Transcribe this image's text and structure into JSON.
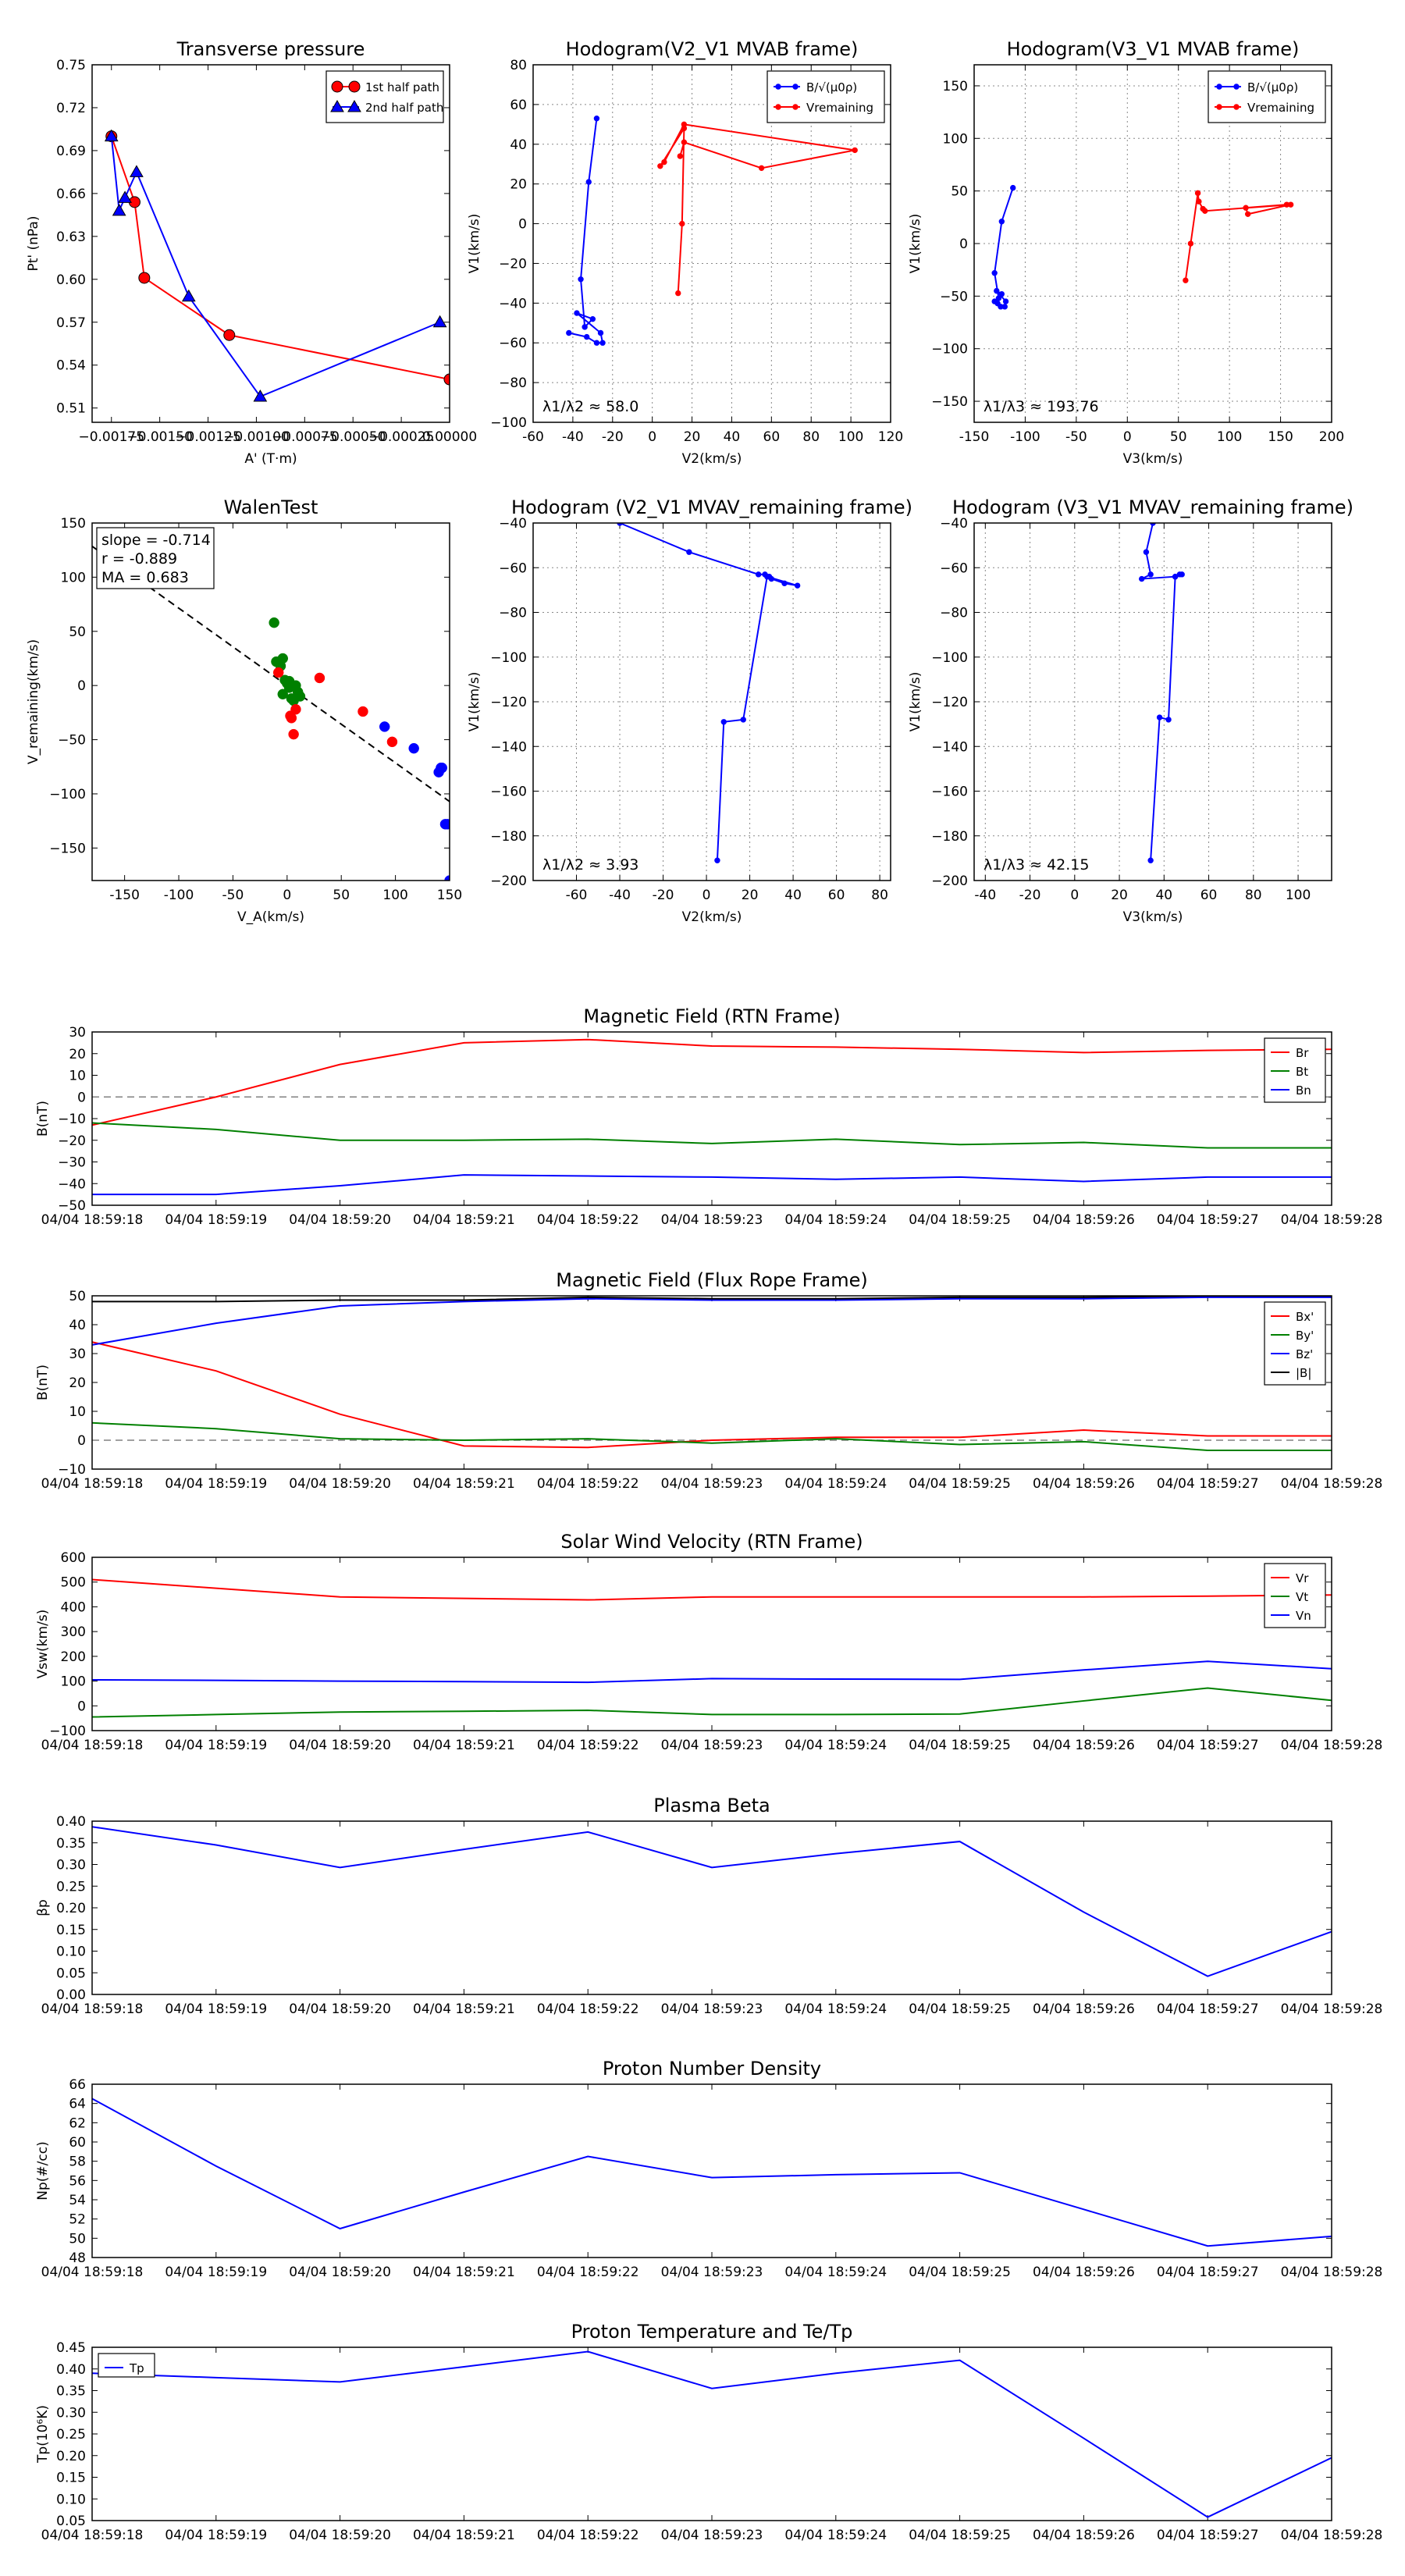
{
  "colors": {
    "red": "#ff0000",
    "green": "#008000",
    "blue": "#0000ff",
    "black": "#000000",
    "gray": "#808080"
  },
  "chart_data": [
    {
      "id": "transverse-pressure",
      "type": "line",
      "title": "Transverse pressure",
      "xlabel": "A' (T·m)",
      "ylabel": "Pt' (nPa)",
      "xlim": [
        -0.00185,
        0.0
      ],
      "ylim": [
        0.5,
        0.75
      ],
      "xticks": [
        -0.00175,
        -0.0015,
        -0.00125,
        -0.001,
        -0.00075,
        -0.0005,
        -0.00025,
        0.0
      ],
      "xtick_labels": [
        "−0.00175",
        "−0.00150",
        "−0.00125",
        "−0.00100",
        "−0.00075",
        "−0.00050",
        "−0.00025",
        "0.00000"
      ],
      "yticks": [
        0.51,
        0.54,
        0.57,
        0.6,
        0.63,
        0.66,
        0.69,
        0.72,
        0.75
      ],
      "ytick_labels": [
        "0.51",
        "0.54",
        "0.57",
        "0.60",
        "0.63",
        "0.66",
        "0.69",
        "0.72",
        "0.75"
      ],
      "legend": [
        "1st half path",
        "2nd half path"
      ],
      "series": [
        {
          "name": "1st half path",
          "color": "red",
          "marker": "circle",
          "x": [
            -0.00175,
            -0.00163,
            -0.00158,
            -0.00114,
            0.0
          ],
          "y": [
            0.7,
            0.654,
            0.601,
            0.561,
            0.53
          ]
        },
        {
          "name": "2nd half path",
          "color": "blue",
          "marker": "triangle",
          "x": [
            -0.00175,
            -0.00171,
            -0.00168,
            -0.00162,
            -0.00135,
            -0.00098,
            -5e-05
          ],
          "y": [
            0.7,
            0.648,
            0.657,
            0.675,
            0.588,
            0.518,
            0.57
          ]
        }
      ]
    },
    {
      "id": "hodogram-v2-v1-mvab",
      "type": "line",
      "title": "Hodogram(V2_V1 MVAB frame)",
      "xlabel": "V2(km/s)",
      "ylabel": "V1(km/s)",
      "xlim": [
        -60,
        120
      ],
      "ylim": [
        -100,
        80
      ],
      "xticks": [
        -60,
        -40,
        -20,
        0,
        20,
        40,
        60,
        80,
        100,
        120
      ],
      "yticks": [
        -100,
        -80,
        -60,
        -40,
        -20,
        0,
        20,
        40,
        60,
        80
      ],
      "grid": true,
      "annotation": "λ1/λ2 ≈ 58.0",
      "legend": [
        "B/√(μ0ρ)",
        "Vremaining"
      ],
      "series": [
        {
          "name": "B/√(μ0ρ)",
          "color": "blue",
          "x": [
            -28,
            -32,
            -36,
            -34,
            -30,
            -38,
            -26,
            -25,
            -28,
            -33,
            -42
          ],
          "y": [
            53,
            21,
            -28,
            -52,
            -48,
            -45,
            -55,
            -60,
            -60,
            -57,
            -55
          ]
        },
        {
          "name": "Vremaining",
          "color": "red",
          "x": [
            13,
            15,
            16,
            4,
            6,
            16,
            102,
            55,
            16,
            14
          ],
          "y": [
            -35,
            0,
            48,
            29,
            31,
            50,
            37,
            28,
            41,
            34
          ]
        }
      ]
    },
    {
      "id": "hodogram-v3-v1-mvab",
      "type": "line",
      "title": "Hodogram(V3_V1 MVAB frame)",
      "xlabel": "V3(km/s)",
      "ylabel": "V1(km/s)",
      "xlim": [
        -150,
        200
      ],
      "ylim": [
        -170,
        170
      ],
      "xticks": [
        -150,
        -100,
        -50,
        0,
        50,
        100,
        150,
        200
      ],
      "yticks": [
        -150,
        -100,
        -50,
        0,
        50,
        100,
        150
      ],
      "grid": true,
      "annotation": "λ1/λ3 ≈ 193.76",
      "legend": [
        "B/√(μ0ρ)",
        "Vremaining"
      ],
      "series": [
        {
          "name": "B/√(μ0ρ)",
          "color": "blue",
          "x": [
            -112,
            -123,
            -130,
            -126,
            -123,
            -128,
            -119,
            -120,
            -124,
            -127,
            -130
          ],
          "y": [
            53,
            21,
            -28,
            -52,
            -48,
            -45,
            -55,
            -60,
            -60,
            -57,
            -55
          ]
        },
        {
          "name": "Vremaining",
          "color": "red",
          "x": [
            57,
            62,
            69,
            70,
            74,
            76,
            160,
            118,
            116,
            156
          ],
          "y": [
            -35,
            0,
            48,
            40,
            33,
            31,
            37,
            28,
            34,
            37
          ]
        }
      ]
    },
    {
      "id": "walen-test",
      "type": "scatter",
      "title": "WalenTest",
      "xlabel": "V_A(km/s)",
      "ylabel": "V_remaining(km/s)",
      "xlim": [
        -180,
        150
      ],
      "ylim": [
        -180,
        150
      ],
      "xticks": [
        -150,
        -100,
        -50,
        0,
        50,
        100,
        150
      ],
      "yticks": [
        -150,
        -100,
        -50,
        0,
        50,
        100,
        150
      ],
      "annotation": [
        "slope = -0.714",
        "r = -0.889",
        "MA = 0.683"
      ],
      "fit_line": {
        "slope": -0.714,
        "intercept": 0
      },
      "series": [
        {
          "name": "green",
          "color": "green",
          "x": [
            -12,
            -10,
            -6,
            -4,
            0,
            -2,
            2,
            4,
            6,
            8,
            10,
            12,
            -4,
            2
          ],
          "y": [
            58,
            22,
            18,
            -8,
            2,
            5,
            4,
            -12,
            -14,
            0,
            -6,
            -10,
            25,
            -2
          ]
        },
        {
          "name": "red",
          "color": "red",
          "x": [
            -8,
            30,
            4,
            70,
            6,
            97,
            8,
            3
          ],
          "y": [
            12,
            7,
            -30,
            -24,
            -45,
            -52,
            -22,
            -28
          ]
        },
        {
          "name": "blue",
          "color": "blue",
          "x": [
            90,
            117,
            140,
            142,
            143,
            146,
            148,
            150
          ],
          "y": [
            -38,
            -58,
            -80,
            -76,
            -76,
            -128,
            -128,
            -180
          ]
        }
      ]
    },
    {
      "id": "hodogram-v2-v1-mvav",
      "type": "line",
      "title": "Hodogram (V2_V1 MVAV_remaining frame)",
      "xlabel": "V2(km/s)",
      "ylabel": "V1(km/s)",
      "xlim": [
        -80,
        85
      ],
      "ylim": [
        -200,
        -40
      ],
      "xticks": [
        -60,
        -40,
        -20,
        0,
        20,
        40,
        60,
        80
      ],
      "yticks": [
        -200,
        -180,
        -160,
        -140,
        -120,
        -100,
        -80,
        -60,
        -40
      ],
      "grid": true,
      "annotation": "λ1/λ2 ≈ 3.93",
      "series": [
        {
          "name": "B",
          "color": "blue",
          "x": [
            -40,
            -8,
            24,
            27,
            29,
            30,
            36,
            42,
            28,
            17,
            8,
            5
          ],
          "y": [
            -40,
            -53,
            -63,
            -63,
            -64,
            -65,
            -67,
            -68,
            -64,
            -128,
            -129,
            -191
          ]
        }
      ]
    },
    {
      "id": "hodogram-v3-v1-mvav",
      "type": "line",
      "title": "Hodogram (V3_V1 MVAV_remaining frame)",
      "xlabel": "V3(km/s)",
      "ylabel": "V1(km/s)",
      "xlim": [
        -45,
        115
      ],
      "ylim": [
        -200,
        -40
      ],
      "xticks": [
        -40,
        -20,
        0,
        20,
        40,
        60,
        80,
        100
      ],
      "yticks": [
        -200,
        -180,
        -160,
        -140,
        -120,
        -100,
        -80,
        -60,
        -40
      ],
      "grid": true,
      "annotation": "λ1/λ3 ≈ 42.15",
      "series": [
        {
          "name": "B",
          "color": "blue",
          "x": [
            35,
            32,
            34,
            30,
            45,
            47,
            48,
            45,
            42,
            38,
            34
          ],
          "y": [
            -40,
            -53,
            -63,
            -65,
            -64,
            -63,
            -63,
            -64,
            -128,
            -127,
            -191
          ]
        }
      ]
    },
    {
      "id": "magnetic-field-rtn",
      "type": "line",
      "title": "Magnetic Field (RTN Frame)",
      "ylabel": "B(nT)",
      "x": [
        0,
        1,
        2,
        3,
        4,
        5,
        6,
        7,
        8,
        9,
        10
      ],
      "xtick_labels": [
        "04/04 18:59:18",
        "04/04 18:59:19",
        "04/04 18:59:20",
        "04/04 18:59:21",
        "04/04 18:59:22",
        "04/04 18:59:23",
        "04/04 18:59:24",
        "04/04 18:59:25",
        "04/04 18:59:26",
        "04/04 18:59:27",
        "04/04 18:59:28"
      ],
      "ylim": [
        -50,
        30
      ],
      "yticks": [
        -50,
        -40,
        -30,
        -20,
        -10,
        0,
        10,
        20,
        30
      ],
      "zero_line": true,
      "legend": [
        "Br",
        "Bt",
        "Bn"
      ],
      "series": [
        {
          "name": "Br",
          "color": "red",
          "values": [
            -13,
            0,
            15,
            25,
            26.5,
            23.5,
            23,
            22,
            20.5,
            21.5,
            22
          ]
        },
        {
          "name": "Bt",
          "color": "green",
          "values": [
            -12,
            -15,
            -20,
            -20,
            -19.5,
            -21.5,
            -19.5,
            -22,
            -21,
            -23.5,
            -23.5
          ]
        },
        {
          "name": "Bn",
          "color": "blue",
          "values": [
            -45,
            -45,
            -41,
            -36,
            -36.5,
            -37,
            -38,
            -37,
            -39,
            -37,
            -37
          ]
        }
      ]
    },
    {
      "id": "magnetic-field-flux-rope",
      "type": "line",
      "title": "Magnetic Field (Flux Rope Frame)",
      "ylabel": "B(nT)",
      "x": [
        0,
        1,
        2,
        3,
        4,
        5,
        6,
        7,
        8,
        9,
        10
      ],
      "xtick_labels": [
        "04/04 18:59:18",
        "04/04 18:59:19",
        "04/04 18:59:20",
        "04/04 18:59:21",
        "04/04 18:59:22",
        "04/04 18:59:23",
        "04/04 18:59:24",
        "04/04 18:59:25",
        "04/04 18:59:26",
        "04/04 18:59:27",
        "04/04 18:59:28"
      ],
      "ylim": [
        -10,
        50
      ],
      "yticks": [
        -10,
        0,
        10,
        20,
        30,
        40,
        50
      ],
      "zero_line": true,
      "legend": [
        "Bx'",
        "By'",
        "Bz'",
        "|B|"
      ],
      "series": [
        {
          "name": "Bx'",
          "color": "red",
          "values": [
            34,
            24,
            9,
            -2,
            -2.5,
            0,
            1,
            1,
            3.5,
            1.5,
            1.5
          ]
        },
        {
          "name": "By'",
          "color": "green",
          "values": [
            6,
            4,
            0.5,
            0,
            0.5,
            -1,
            0.5,
            -1.5,
            -0.5,
            -3.5,
            -3.5
          ]
        },
        {
          "name": "Bz'",
          "color": "blue",
          "values": [
            33,
            40.5,
            46.5,
            48,
            49,
            48.5,
            48.5,
            49,
            49,
            49.5,
            49.5
          ]
        },
        {
          "name": "|B|",
          "color": "black",
          "values": [
            48,
            48,
            48.5,
            48.5,
            49.5,
            49,
            49,
            49.5,
            49.5,
            50,
            50
          ]
        }
      ]
    },
    {
      "id": "solar-wind-velocity",
      "type": "line",
      "title": "Solar Wind Velocity (RTN Frame)",
      "ylabel": "Vsw(km/s)",
      "x": [
        0,
        1,
        2,
        3,
        4,
        5,
        6,
        7,
        8,
        9,
        10
      ],
      "xtick_labels": [
        "04/04 18:59:18",
        "04/04 18:59:19",
        "04/04 18:59:20",
        "04/04 18:59:21",
        "04/04 18:59:22",
        "04/04 18:59:23",
        "04/04 18:59:24",
        "04/04 18:59:25",
        "04/04 18:59:26",
        "04/04 18:59:27",
        "04/04 18:59:28"
      ],
      "ylim": [
        -100,
        600
      ],
      "yticks": [
        -100,
        0,
        100,
        200,
        300,
        400,
        500,
        600
      ],
      "legend": [
        "Vr",
        "Vt",
        "Vn"
      ],
      "series": [
        {
          "name": "Vr",
          "color": "red",
          "values": [
            510,
            475,
            440,
            434,
            428,
            440,
            440,
            440,
            440,
            443,
            448
          ]
        },
        {
          "name": "Vt",
          "color": "green",
          "values": [
            -45,
            -35,
            -25,
            -22,
            -18,
            -35,
            -35,
            -33,
            20,
            72,
            22
          ]
        },
        {
          "name": "Vn",
          "color": "blue",
          "values": [
            105,
            103,
            100,
            98,
            95,
            110,
            108,
            107,
            145,
            180,
            150
          ]
        }
      ]
    },
    {
      "id": "plasma-beta",
      "type": "line",
      "title": "Plasma Beta",
      "ylabel": "βp",
      "x": [
        0,
        1,
        2,
        3,
        4,
        5,
        6,
        7,
        8,
        9,
        10
      ],
      "xtick_labels": [
        "04/04 18:59:18",
        "04/04 18:59:19",
        "04/04 18:59:20",
        "04/04 18:59:21",
        "04/04 18:59:22",
        "04/04 18:59:23",
        "04/04 18:59:24",
        "04/04 18:59:25",
        "04/04 18:59:26",
        "04/04 18:59:27",
        "04/04 18:59:28"
      ],
      "ylim": [
        0.0,
        0.4
      ],
      "yticks": [
        0.0,
        0.05,
        0.1,
        0.15,
        0.2,
        0.25,
        0.3,
        0.35,
        0.4
      ],
      "ytick_labels": [
        "0.00",
        "0.05",
        "0.10",
        "0.15",
        "0.20",
        "0.25",
        "0.30",
        "0.35",
        "0.40"
      ],
      "series": [
        {
          "name": "beta",
          "color": "blue",
          "values": [
            0.387,
            0.345,
            0.293,
            0.335,
            0.375,
            0.293,
            0.325,
            0.353,
            0.19,
            0.042,
            0.145
          ]
        }
      ]
    },
    {
      "id": "proton-number-density",
      "type": "line",
      "title": "Proton Number Density",
      "ylabel": "Np(#/cc)",
      "x": [
        0,
        1,
        2,
        3,
        4,
        5,
        6,
        7,
        8,
        9,
        10
      ],
      "xtick_labels": [
        "04/04 18:59:18",
        "04/04 18:59:19",
        "04/04 18:59:20",
        "04/04 18:59:21",
        "04/04 18:59:22",
        "04/04 18:59:23",
        "04/04 18:59:24",
        "04/04 18:59:25",
        "04/04 18:59:26",
        "04/04 18:59:27",
        "04/04 18:59:28"
      ],
      "ylim": [
        48,
        66
      ],
      "yticks": [
        48,
        50,
        52,
        54,
        56,
        58,
        60,
        62,
        64,
        66
      ],
      "series": [
        {
          "name": "Np",
          "color": "blue",
          "values": [
            64.5,
            57.5,
            51.0,
            54.8,
            58.5,
            56.3,
            56.6,
            56.8,
            53.0,
            49.2,
            50.2
          ]
        }
      ]
    },
    {
      "id": "proton-temperature",
      "type": "line",
      "title": "Proton Temperature and Te/Tp",
      "ylabel": "Tp(10⁶K)",
      "x": [
        0,
        1,
        2,
        3,
        4,
        5,
        6,
        7,
        8,
        9,
        10
      ],
      "xtick_labels": [
        "04/04 18:59:18",
        "04/04 18:59:19",
        "04/04 18:59:20",
        "04/04 18:59:21",
        "04/04 18:59:22",
        "04/04 18:59:23",
        "04/04 18:59:24",
        "04/04 18:59:25",
        "04/04 18:59:26",
        "04/04 18:59:27",
        "04/04 18:59:28"
      ],
      "ylim": [
        0.05,
        0.45
      ],
      "yticks": [
        0.05,
        0.1,
        0.15,
        0.2,
        0.25,
        0.3,
        0.35,
        0.4,
        0.45
      ],
      "ytick_labels": [
        "0.05",
        "0.10",
        "0.15",
        "0.20",
        "0.25",
        "0.30",
        "0.35",
        "0.40",
        "0.45"
      ],
      "legend": [
        "Tp"
      ],
      "series": [
        {
          "name": "Tp",
          "color": "blue",
          "values": [
            0.39,
            0.38,
            0.37,
            0.405,
            0.44,
            0.355,
            0.39,
            0.42,
            0.24,
            0.058,
            0.195
          ]
        }
      ]
    }
  ]
}
